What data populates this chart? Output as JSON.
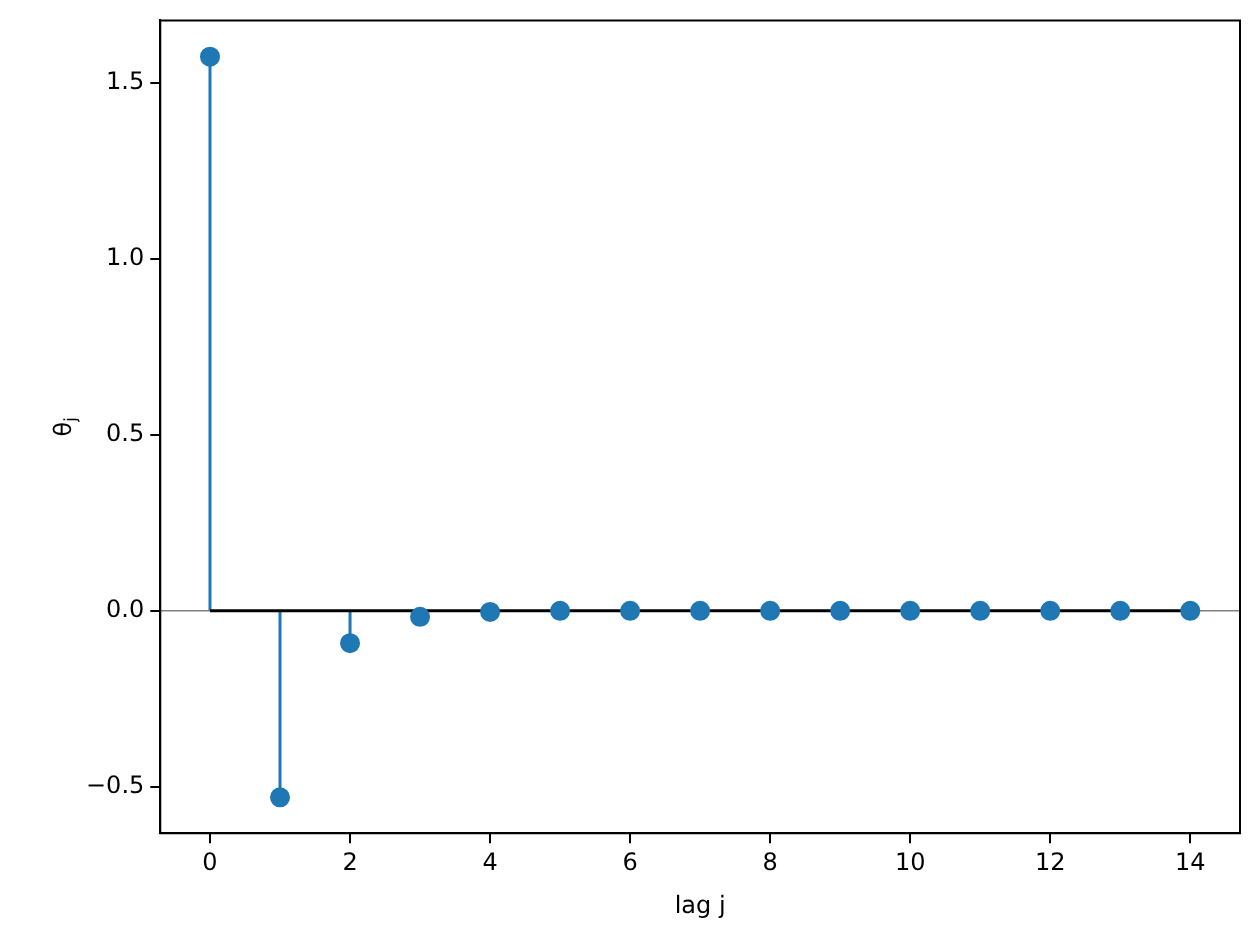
{
  "chart_data": {
    "type": "lollipop",
    "xlabel": "lag j",
    "ylabel": "θ$_{j}$",
    "x": [
      0,
      1,
      2,
      3,
      4,
      5,
      6,
      7,
      8,
      9,
      10,
      11,
      12,
      13,
      14
    ],
    "values": [
      1.575,
      -0.53,
      -0.092,
      -0.017,
      -0.003,
      0,
      0,
      0,
      0,
      0,
      0,
      0,
      0,
      0,
      0
    ],
    "color": "#1f77b4",
    "marker": "circle",
    "xlim": [
      -0.71,
      14.71
    ],
    "xticks": [
      0,
      2,
      4,
      6,
      8,
      10,
      12,
      14
    ],
    "ylim": [
      -0.632,
      1.678
    ],
    "yticks": [
      {
        "value": -0.5,
        "label": "−0.5"
      },
      {
        "value": 0,
        "label": "0.0"
      },
      {
        "value": 0.5,
        "label": "0.5"
      },
      {
        "value": 1,
        "label": "1.0"
      },
      {
        "value": 1.5,
        "label": "1.5"
      }
    ],
    "ref_lines": [
      {
        "axis": "y",
        "value": 0,
        "color": "#808080"
      }
    ]
  }
}
